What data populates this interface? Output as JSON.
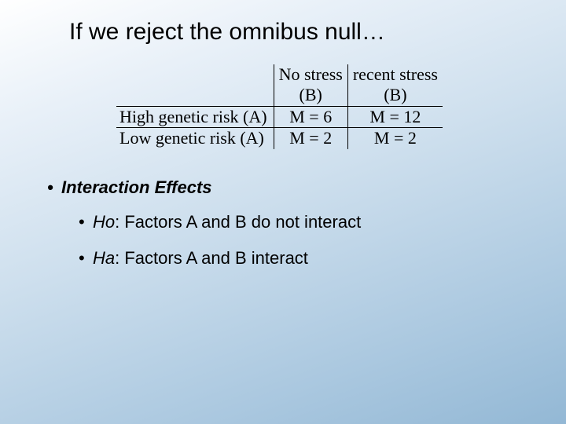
{
  "title": "If we reject the omnibus null…",
  "table": {
    "col1_line1": "No stress",
    "col1_line2": "(B)",
    "col2_line1": "recent stress",
    "col2_line2": "(B)",
    "row1_label": "High genetic risk (A)",
    "row1_col1": "M = 6",
    "row1_col2": "M = 12",
    "row2_label": "Low genetic risk (A)",
    "row2_col1": "M = 2",
    "row2_col2": "M = 2"
  },
  "bullets": {
    "section": "Interaction Effects",
    "ho_label": "Ho",
    "ho_text": ": Factors A and B do not interact",
    "ha_label": "Ha",
    "ha_text": ": Factors A and B interact"
  },
  "colors": {
    "text": "#000000",
    "border": "#000000"
  }
}
